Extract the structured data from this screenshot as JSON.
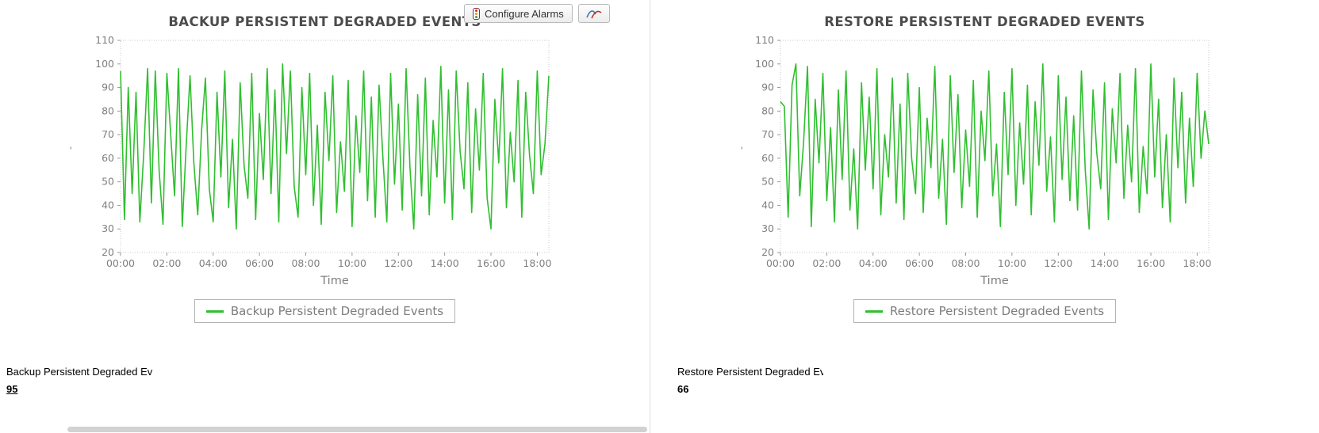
{
  "toolbar": {
    "configure_alarms_label": "Configure Alarms"
  },
  "colors": {
    "series_green": "#2fbf2f",
    "title_gray": "#4c4c4c",
    "axis_gray": "#7f7f7f"
  },
  "panels": [
    {
      "title": "BACKUP PERSISTENT DEGRADED EVENTS",
      "legend_label": "Backup Persistent Degraded Events",
      "axis_mark": "'",
      "footer_label": "Backup Persistent Degraded Ev",
      "footer_value": "95"
    },
    {
      "title": "RESTORE PERSISTENT DEGRADED EVENTS",
      "legend_label": "Restore Persistent Degraded Events",
      "axis_mark": "'",
      "footer_label": "Restore Persistent Degraded Ev",
      "footer_value": "66"
    }
  ],
  "chart_data": [
    {
      "type": "line",
      "title": "BACKUP PERSISTENT DEGRADED EVENTS",
      "xlabel": "Time",
      "ylabel": "",
      "ylim": [
        20,
        110
      ],
      "ytick_step": 10,
      "x_hours_max": 18.5,
      "xticks": [
        "00:00",
        "02:00",
        "04:00",
        "06:00",
        "08:00",
        "10:00",
        "12:00",
        "14:00",
        "16:00",
        "18:00"
      ],
      "grid": false,
      "legend_position": "bottom",
      "series": [
        {
          "name": "Backup Persistent Degraded Events",
          "color": "#2fbf2f",
          "values": [
            97,
            34,
            90,
            45,
            88,
            33,
            62,
            98,
            41,
            97,
            55,
            32,
            96,
            70,
            44,
            98,
            31,
            65,
            95,
            58,
            36,
            72,
            94,
            47,
            33,
            88,
            52,
            97,
            39,
            68,
            30,
            92,
            57,
            43,
            96,
            34,
            79,
            51,
            98,
            45,
            89,
            33,
            100,
            62,
            97,
            48,
            35,
            90,
            53,
            96,
            40,
            74,
            32,
            88,
            59,
            95,
            37,
            67,
            46,
            93,
            31,
            78,
            54,
            97,
            42,
            86,
            35,
            91,
            60,
            33,
            96,
            49,
            83,
            38,
            98,
            56,
            30,
            87,
            44,
            94,
            36,
            76,
            52,
            99,
            41,
            89,
            34,
            97,
            63,
            47,
            92,
            37,
            81,
            55,
            96,
            43,
            30,
            85,
            58,
            98,
            39,
            71,
            50,
            93,
            35,
            88,
            61,
            45,
            97,
            53,
            66,
            95
          ]
        }
      ]
    },
    {
      "type": "line",
      "title": "RESTORE PERSISTENT DEGRADED EVENTS",
      "xlabel": "Time",
      "ylabel": "",
      "ylim": [
        20,
        110
      ],
      "ytick_step": 10,
      "x_hours_max": 18.5,
      "xticks": [
        "00:00",
        "02:00",
        "04:00",
        "06:00",
        "08:00",
        "10:00",
        "12:00",
        "14:00",
        "16:00",
        "18:00"
      ],
      "grid": false,
      "legend_position": "bottom",
      "series": [
        {
          "name": "Restore Persistent Degraded Events",
          "color": "#2fbf2f",
          "values": [
            84,
            82,
            35,
            91,
            100,
            44,
            67,
            99,
            31,
            85,
            58,
            96,
            42,
            73,
            33,
            89,
            51,
            97,
            38,
            64,
            30,
            92,
            55,
            86,
            47,
            98,
            36,
            70,
            52,
            94,
            41,
            83,
            34,
            96,
            60,
            45,
            90,
            37,
            77,
            56,
            99,
            43,
            68,
            32,
            95,
            54,
            87,
            39,
            72,
            48,
            93,
            35,
            80,
            59,
            97,
            44,
            66,
            31,
            88,
            53,
            98,
            40,
            75,
            49,
            91,
            36,
            84,
            57,
            100,
            46,
            69,
            33,
            95,
            51,
            86,
            42,
            78,
            38,
            97,
            55,
            30,
            89,
            62,
            47,
            92,
            34,
            81,
            58,
            96,
            43,
            74,
            50,
            98,
            37,
            65,
            45,
            100,
            52,
            85,
            39,
            70,
            33,
            94,
            56,
            88,
            41,
            77,
            48,
            96,
            60,
            80,
            66
          ]
        }
      ]
    }
  ]
}
